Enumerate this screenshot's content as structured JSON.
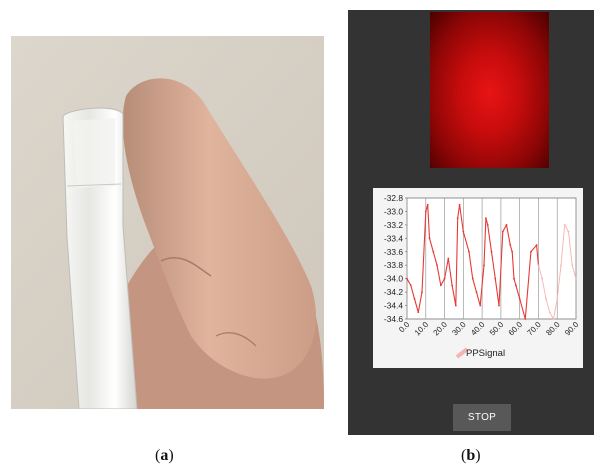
{
  "captions": {
    "a_open": "(",
    "a_letter": "a",
    "a_close": ")",
    "b_open": "(",
    "b_letter": "b",
    "b_close": ")"
  },
  "app": {
    "stop_label": "STOP",
    "preview_color": "#c70c0c",
    "background_color": "#333333"
  },
  "chart_data": {
    "type": "line",
    "title": "",
    "xlabel": "",
    "ylabel": "",
    "xlim": [
      0,
      90
    ],
    "ylim": [
      -34.6,
      -32.8
    ],
    "x_ticks": [
      "0.0",
      "10.0",
      "20.0",
      "30.0",
      "40.0",
      "50.0",
      "60.0",
      "70.0",
      "80.0",
      "90.0"
    ],
    "y_ticks": [
      "-32.8",
      "-33.0",
      "-33.2",
      "-33.4",
      "-33.6",
      "-33.8",
      "-34.0",
      "-34.2",
      "-34.4",
      "-34.6"
    ],
    "grid": true,
    "legend_position": "bottom",
    "series": [
      {
        "name": "PPSignal",
        "color": "#e53935",
        "x": [
          0,
          2,
          4,
          6,
          8,
          10,
          11,
          12,
          14,
          16,
          18,
          20,
          22,
          24,
          26,
          27,
          28,
          30,
          33,
          35,
          37,
          39,
          41,
          42,
          43,
          45,
          47,
          49,
          51,
          53,
          55,
          56,
          57,
          58,
          60,
          63,
          66,
          69,
          70
        ],
        "y": [
          -34.0,
          -34.1,
          -34.3,
          -34.5,
          -34.2,
          -33.0,
          -32.9,
          -33.4,
          -33.6,
          -33.8,
          -34.1,
          -34.0,
          -33.7,
          -34.1,
          -34.4,
          -33.1,
          -32.9,
          -33.3,
          -33.6,
          -34.0,
          -34.2,
          -34.4,
          -33.8,
          -33.1,
          -33.2,
          -33.6,
          -34.0,
          -34.4,
          -33.3,
          -33.2,
          -33.5,
          -33.6,
          -34.0,
          -34.1,
          -34.3,
          -34.6,
          -33.6,
          -33.5,
          -33.8
        ]
      },
      {
        "name": "",
        "color": "#f7b3b0",
        "x": [
          70,
          72,
          74,
          76,
          78,
          80,
          82,
          84,
          86,
          88,
          90
        ],
        "y": [
          -33.8,
          -34.0,
          -34.3,
          -34.5,
          -34.6,
          -34.3,
          -33.8,
          -33.2,
          -33.3,
          -33.8,
          -34.0
        ]
      }
    ]
  }
}
